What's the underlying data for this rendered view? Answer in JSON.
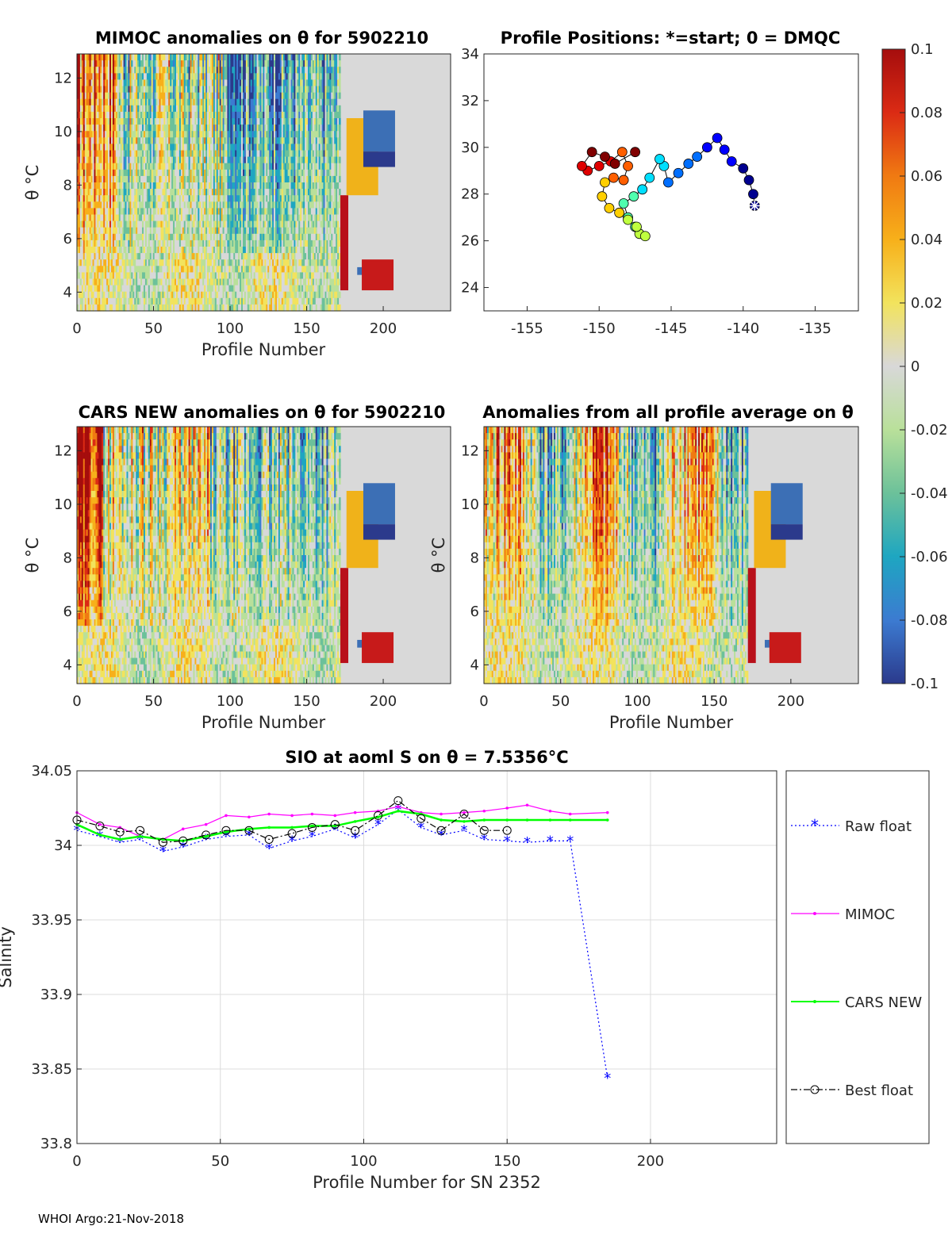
{
  "chart_data": [
    {
      "id": "mimoc",
      "type": "heatmap",
      "title": "MIMOC anomalies on θ  for 5902210",
      "xlabel": "Profile Number",
      "ylabel": "θ °C",
      "xlim": [
        0,
        244
      ],
      "ylim": [
        3.3,
        12.9
      ],
      "xticks": [
        "0",
        "50",
        "100",
        "150",
        "200"
      ],
      "yticks": [
        "4",
        "6",
        "8",
        "10",
        "12"
      ]
    },
    {
      "id": "positions",
      "type": "scatter",
      "title": "Profile Positions: *=start; 0 = DMQC",
      "xlim": [
        -158,
        -132
      ],
      "ylim": [
        23,
        34
      ],
      "xticks": [
        "-155",
        "-150",
        "-145",
        "-140",
        "-135"
      ],
      "yticks": [
        "24",
        "26",
        "28",
        "30",
        "32",
        "34"
      ],
      "track": [
        [
          -139.2,
          27.5
        ],
        [
          -139.3,
          28.0
        ],
        [
          -139.6,
          28.6
        ],
        [
          -140.0,
          29.1
        ],
        [
          -140.8,
          29.4
        ],
        [
          -141.3,
          29.9
        ],
        [
          -141.8,
          30.4
        ],
        [
          -142.5,
          30.0
        ],
        [
          -143.2,
          29.6
        ],
        [
          -143.8,
          29.3
        ],
        [
          -144.5,
          28.9
        ],
        [
          -145.2,
          28.5
        ],
        [
          -145.5,
          29.2
        ],
        [
          -145.8,
          29.5
        ],
        [
          -146.5,
          28.7
        ],
        [
          -147.0,
          28.2
        ],
        [
          -147.6,
          27.9
        ],
        [
          -148.3,
          27.6
        ],
        [
          -148.0,
          27.0
        ],
        [
          -147.5,
          26.6
        ],
        [
          -147.2,
          26.3
        ],
        [
          -146.8,
          26.2
        ],
        [
          -147.4,
          26.6
        ],
        [
          -148.0,
          26.9
        ],
        [
          -148.6,
          27.2
        ],
        [
          -149.3,
          27.4
        ],
        [
          -149.8,
          27.9
        ],
        [
          -149.6,
          28.5
        ],
        [
          -149.0,
          28.7
        ],
        [
          -148.3,
          28.6
        ],
        [
          -148.0,
          29.2
        ],
        [
          -148.4,
          29.8
        ],
        [
          -149.2,
          29.4
        ],
        [
          -150.0,
          29.2
        ],
        [
          -150.8,
          29.0
        ],
        [
          -151.2,
          29.2
        ],
        [
          -150.5,
          29.8
        ],
        [
          -149.6,
          29.6
        ],
        [
          -148.9,
          29.3
        ],
        [
          -147.5,
          29.8
        ]
      ],
      "start_marker": [
        -139.2,
        27.5
      ]
    },
    {
      "id": "cars",
      "type": "heatmap",
      "title": "CARS NEW anomalies on θ for 5902210",
      "xlabel": "Profile Number",
      "ylabel": "θ °C",
      "xlim": [
        0,
        244
      ],
      "ylim": [
        3.3,
        12.9
      ],
      "xticks": [
        "0",
        "50",
        "100",
        "150",
        "200"
      ],
      "yticks": [
        "4",
        "6",
        "8",
        "10",
        "12"
      ]
    },
    {
      "id": "allavg",
      "type": "heatmap",
      "title": "Anomalies from all profile average on θ",
      "xlabel": "Profile Number",
      "ylabel": "θ °C",
      "xlim": [
        0,
        244
      ],
      "ylim": [
        3.3,
        12.9
      ],
      "xticks": [
        "0",
        "50",
        "100",
        "150",
        "200"
      ],
      "yticks": [
        "4",
        "6",
        "8",
        "10",
        "12"
      ]
    },
    {
      "id": "colorbar",
      "type": "colorbar",
      "range": [
        -0.1,
        0.1
      ],
      "ticks": [
        "0.1",
        "0.08",
        "0.06",
        "0.04",
        "0.02",
        "0",
        "-0.02",
        "-0.04",
        "-0.06",
        "-0.08",
        "-0.1"
      ],
      "stops": [
        "#2b3a8c",
        "#3c7bd1",
        "#1ea6c1",
        "#6cc19a",
        "#b9e09a",
        "#d8d8d8",
        "#f2e35d",
        "#f7b01a",
        "#f07a12",
        "#db2b14",
        "#a50d0d"
      ]
    },
    {
      "id": "salinity",
      "type": "line",
      "title": "SIO at aoml S on θ = 7.5356°C",
      "xlabel": "Profile Number for SN 2352",
      "ylabel": "Salinity",
      "xlim": [
        0,
        244
      ],
      "ylim": [
        33.8,
        34.05
      ],
      "xticks": [
        "0",
        "50",
        "100",
        "150",
        "200"
      ],
      "yticks": [
        "34.05",
        "34",
        "33.95",
        "33.9",
        "33.85",
        "33.8"
      ],
      "x": [
        0,
        8,
        15,
        22,
        30,
        37,
        45,
        52,
        60,
        67,
        75,
        82,
        90,
        97,
        105,
        112,
        120,
        127,
        135,
        142,
        150,
        157,
        165,
        172,
        185
      ],
      "series": [
        {
          "name": "Raw float",
          "color": "#0000ff",
          "values": [
            34.01,
            34.006,
            34.002,
            34.004,
            33.996,
            33.999,
            34.004,
            34.006,
            34.007,
            33.998,
            34.003,
            34.006,
            34.011,
            34.005,
            34.014,
            34.024,
            34.012,
            34.007,
            34.01,
            34.004,
            34.003,
            34.002,
            34.003,
            34.003,
            33.844
          ]
        },
        {
          "name": "MIMOC",
          "color": "#ff00ff",
          "values": [
            34.022,
            34.014,
            34.012,
            34.006,
            34.004,
            34.011,
            34.014,
            34.02,
            34.019,
            34.021,
            34.02,
            34.021,
            34.02,
            34.022,
            34.023,
            34.026,
            34.022,
            34.021,
            34.022,
            34.023,
            34.025,
            34.027,
            34.023,
            34.021,
            34.022
          ]
        },
        {
          "name": "CARS NEW",
          "color": "#00ff00",
          "values": [
            34.014,
            34.007,
            34.004,
            34.006,
            34.004,
            34.003,
            34.006,
            34.009,
            34.011,
            34.012,
            34.012,
            34.013,
            34.013,
            34.016,
            34.019,
            34.023,
            34.021,
            34.017,
            34.016,
            34.017,
            34.017,
            34.017,
            34.017,
            34.017,
            34.017
          ]
        },
        {
          "name": "Best float",
          "color": "#000000",
          "values": [
            34.017,
            34.013,
            34.009,
            34.01,
            34.002,
            34.003,
            34.007,
            34.01,
            34.01,
            34.004,
            34.008,
            34.012,
            34.014,
            34.01,
            34.02,
            34.03,
            34.018,
            34.01,
            34.021,
            34.01,
            34.01,
            null,
            null,
            null,
            null
          ]
        }
      ]
    }
  ],
  "legend": {
    "entries": [
      {
        "label": "Raw float",
        "color": "#0000ff",
        "marker": "*",
        "dash": "2,3"
      },
      {
        "label": "MIMOC",
        "color": "#ff00ff",
        "marker": ".",
        "dash": ""
      },
      {
        "label": "CARS NEW",
        "color": "#00ff00",
        "marker": ".",
        "dash": ""
      },
      {
        "label": "Best float",
        "color": "#000000",
        "marker": "o",
        "dash": "8,3,2,3"
      }
    ]
  },
  "footer": "WHOI Argo:21-Nov-2018"
}
